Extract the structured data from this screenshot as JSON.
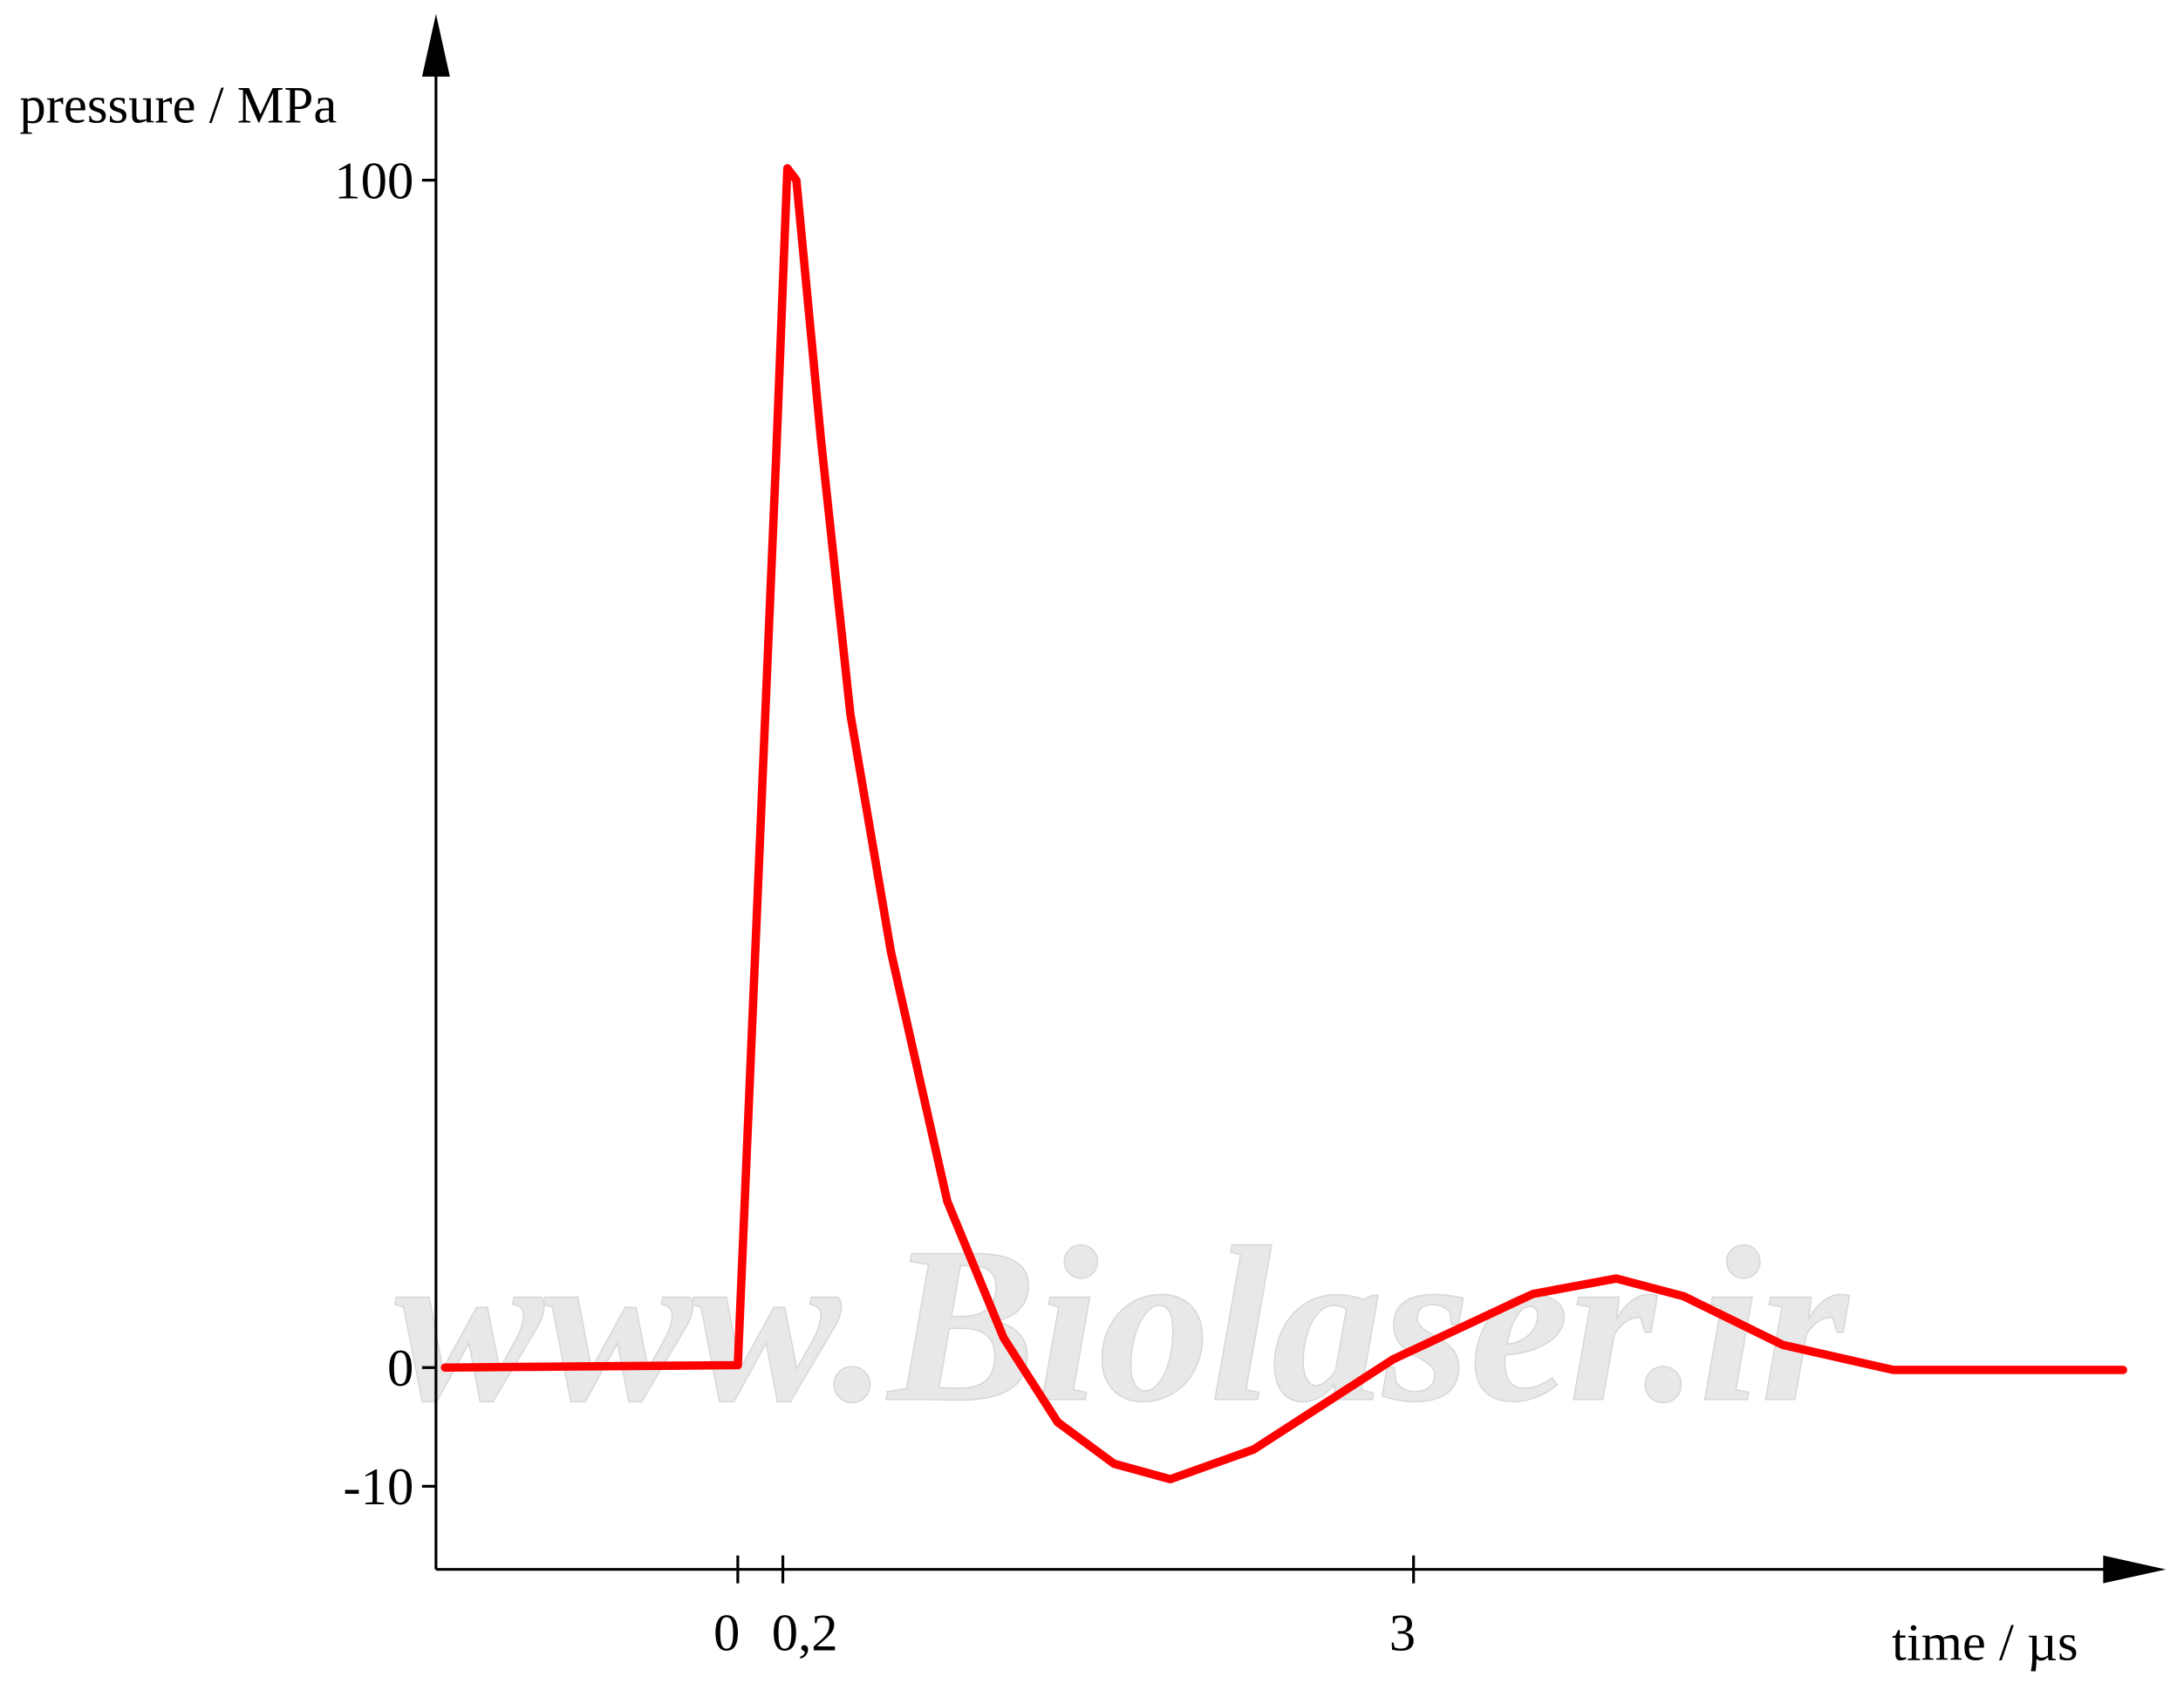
{
  "chart_data": {
    "type": "line",
    "y_label": "pressure / MPa",
    "x_label": "time / µs",
    "watermark": "www.Biolaser.ir",
    "xlim": [
      -1.34,
      6.34
    ],
    "ylim": [
      -17,
      114
    ],
    "xticks": [
      0,
      {
        "value": 0.2,
        "label": "0,2"
      },
      3
    ],
    "yticks": [
      100,
      0,
      -10
    ],
    "series": [
      {
        "color": "#ff0000",
        "x": [
          -1.3,
          0,
          0.17,
          0.22,
          0.26,
          0.37,
          0.5,
          0.68,
          0.93,
          1.18,
          1.42,
          1.67,
          1.92,
          2.29,
          2.91,
          3.53,
          3.9,
          4.2,
          4.64,
          5.13,
          6.15
        ],
        "values": [
          0,
          0.2,
          76.6,
          101,
          100,
          78,
          55,
          35,
          14,
          2.5,
          -4.6,
          -8.1,
          -9.4,
          -6.9,
          0.7,
          6.2,
          7.5,
          6,
          1.9,
          -0.2,
          -0.2
        ]
      }
    ]
  }
}
